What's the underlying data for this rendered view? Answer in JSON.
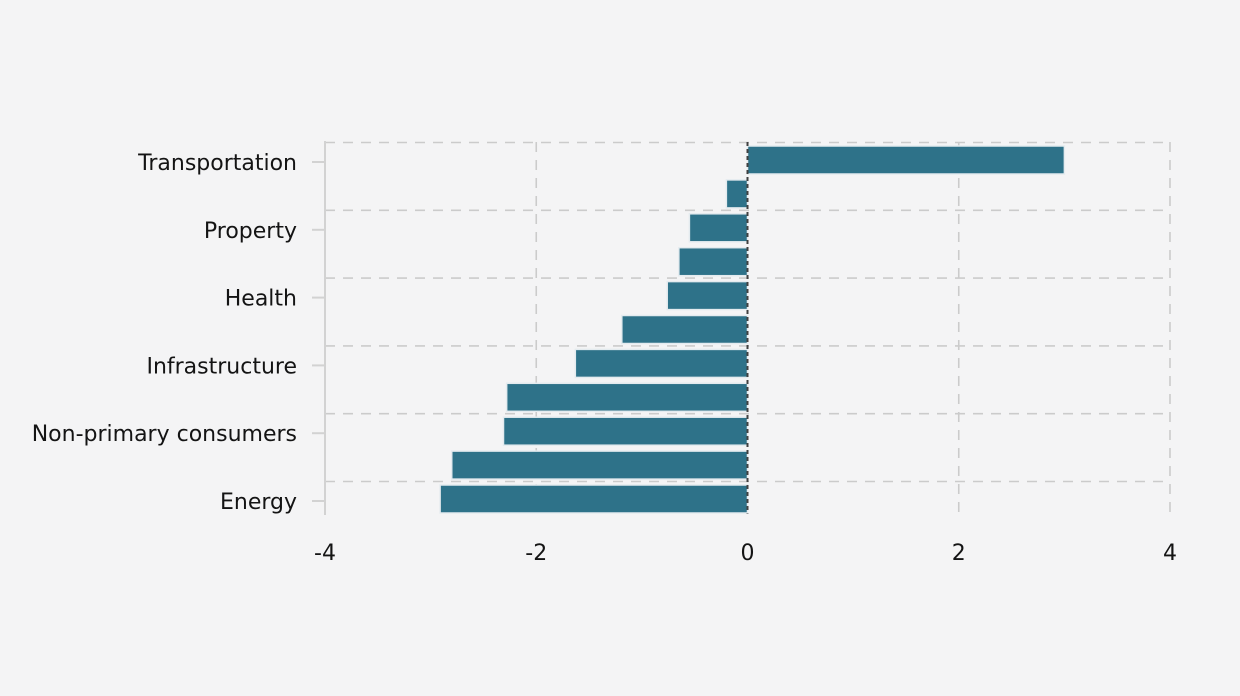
{
  "canvas": {
    "background": "#f4f4f5"
  },
  "chart_data": {
    "type": "bar",
    "orientation": "horizontal",
    "title": "",
    "xlabel": "",
    "ylabel": "",
    "grid": "dashed",
    "legend": null,
    "xlim": [
      -4,
      4
    ],
    "xticks": [
      -4,
      -2,
      0,
      2,
      4
    ],
    "xtick_labels": [
      "-4",
      "-2",
      "0",
      "2",
      "4"
    ],
    "bars": [
      {
        "label": "Transportation",
        "value": 3.0
      },
      {
        "label": "",
        "value": -0.2
      },
      {
        "label": "Property",
        "value": -0.55
      },
      {
        "label": "",
        "value": -0.65
      },
      {
        "label": "Health",
        "value": -0.76
      },
      {
        "label": "",
        "value": -1.19
      },
      {
        "label": "Infrastructure",
        "value": -1.63
      },
      {
        "label": "",
        "value": -2.28
      },
      {
        "label": "Non-primary consumers",
        "value": -2.31
      },
      {
        "label": "",
        "value": -2.8
      },
      {
        "label": "Energy",
        "value": -2.91
      }
    ],
    "colors": {
      "bar": "#2e7289",
      "bar_edge": "#e4ebef",
      "grid": "#cbcbcb",
      "spine": "#d2d2d2",
      "zero_line": "#414141",
      "text": "#141414",
      "background": "#f4f4f5"
    }
  }
}
